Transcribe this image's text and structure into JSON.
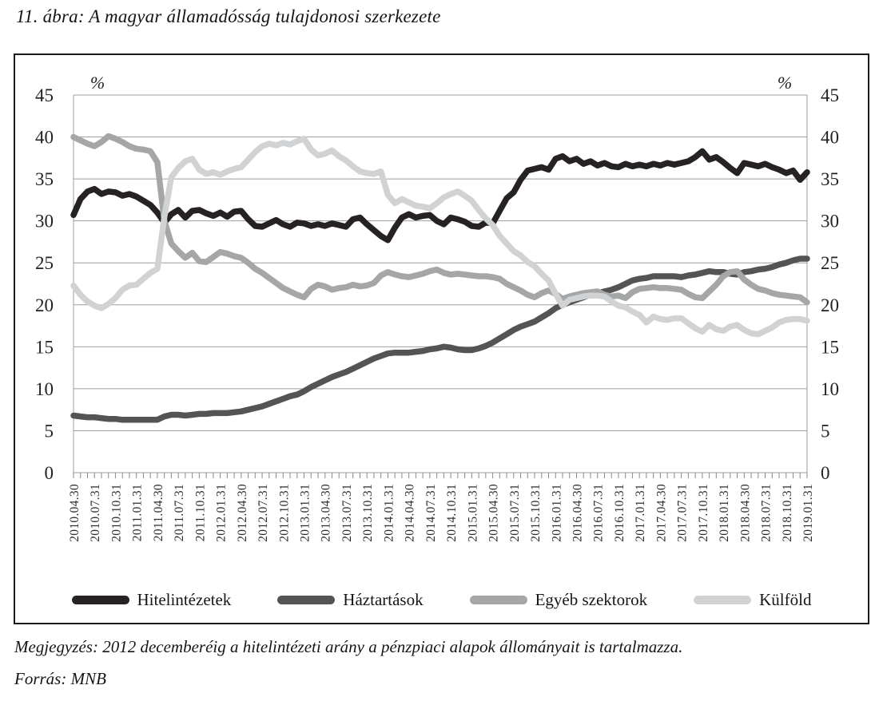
{
  "title": "11. ábra: A magyar államadósság tulajdonosi szerkezete",
  "note": "Megjegyzés: 2012 decemberéig a hitelintézeti arány a pénzpiaci alapok állományait is tartalmazza.",
  "source": "Forrás: MNB",
  "chart_data": {
    "type": "line",
    "unit_label": "%",
    "ylim": [
      0,
      45
    ],
    "y_ticks": [
      0,
      5,
      10,
      15,
      20,
      25,
      30,
      35,
      40,
      45
    ],
    "grid": "horizontal",
    "legend_position": "bottom",
    "x_frequency": "monthly",
    "x_tick_labels": [
      "2010.04.30",
      "2010.07.31",
      "2010.10.31",
      "2011.01.31",
      "2011.04.30",
      "2011.07.31",
      "2011.10.31",
      "2012.01.31",
      "2012.04.30",
      "2012.07.31",
      "2012.10.31",
      "2013.01.31",
      "2013.04.30",
      "2013.07.31",
      "2013.10.31",
      "2014.01.31",
      "2014.04.30",
      "2014.07.31",
      "2014.10.31",
      "2015.01.31",
      "2015.04.30",
      "2015.07.31",
      "2015.10.31",
      "2016.01.31",
      "2016.04.30",
      "2016.07.31",
      "2016.10.31",
      "2017.01.31",
      "2017.04.30",
      "2017.07.31",
      "2017.10.31",
      "2018.01.31",
      "2018.04.30",
      "2018.07.31",
      "2018.10.31",
      "2019.01.31"
    ],
    "months_per_label": 3,
    "colors": {
      "frame": "#1a1a1a",
      "gridline": "#9e9e9e",
      "axis_text": "#222222"
    },
    "series": [
      {
        "name": "Hitelintézetek",
        "color": "#262223",
        "values": [
          30.7,
          32.6,
          33.5,
          33.8,
          33.2,
          33.5,
          33.4,
          33.0,
          33.2,
          32.9,
          32.4,
          31.9,
          31.0,
          29.8,
          30.8,
          31.3,
          30.4,
          31.2,
          31.3,
          30.9,
          30.6,
          31.0,
          30.5,
          31.1,
          31.2,
          30.2,
          29.4,
          29.3,
          29.7,
          30.1,
          29.6,
          29.3,
          29.8,
          29.7,
          29.4,
          29.6,
          29.4,
          29.7,
          29.5,
          29.3,
          30.2,
          30.4,
          29.6,
          28.9,
          28.2,
          27.7,
          29.2,
          30.4,
          30.8,
          30.4,
          30.6,
          30.7,
          30.0,
          29.6,
          30.4,
          30.2,
          29.9,
          29.4,
          29.3,
          29.8,
          29.7,
          31.2,
          32.7,
          33.4,
          34.9,
          36.0,
          36.2,
          36.4,
          36.1,
          37.4,
          37.7,
          37.1,
          37.4,
          36.8,
          37.1,
          36.6,
          36.9,
          36.5,
          36.4,
          36.8,
          36.5,
          36.7,
          36.5,
          36.8,
          36.6,
          36.9,
          36.7,
          36.9,
          37.1,
          37.6,
          38.3,
          37.3,
          37.6,
          37.0,
          36.3,
          35.7,
          36.9,
          36.7,
          36.5,
          36.8,
          36.4,
          36.1,
          35.7,
          36.0,
          34.9,
          35.8
        ]
      },
      {
        "name": "Háztartások",
        "color": "#545456",
        "values": [
          6.8,
          6.7,
          6.6,
          6.6,
          6.5,
          6.4,
          6.4,
          6.3,
          6.3,
          6.3,
          6.3,
          6.3,
          6.3,
          6.7,
          6.9,
          6.9,
          6.8,
          6.9,
          7.0,
          7.0,
          7.1,
          7.1,
          7.1,
          7.2,
          7.3,
          7.5,
          7.7,
          7.9,
          8.2,
          8.5,
          8.8,
          9.1,
          9.3,
          9.7,
          10.2,
          10.6,
          11.0,
          11.4,
          11.7,
          12.0,
          12.4,
          12.8,
          13.2,
          13.6,
          13.9,
          14.2,
          14.3,
          14.3,
          14.3,
          14.4,
          14.5,
          14.7,
          14.8,
          15.0,
          14.9,
          14.7,
          14.6,
          14.6,
          14.8,
          15.1,
          15.5,
          16.0,
          16.5,
          17.0,
          17.4,
          17.7,
          18.0,
          18.5,
          19.0,
          19.6,
          20.0,
          20.3,
          20.6,
          20.9,
          21.2,
          21.4,
          21.6,
          21.8,
          22.1,
          22.5,
          22.9,
          23.1,
          23.2,
          23.4,
          23.4,
          23.4,
          23.4,
          23.3,
          23.5,
          23.6,
          23.8,
          24.0,
          23.9,
          23.9,
          23.7,
          23.6,
          23.9,
          24.0,
          24.2,
          24.3,
          24.5,
          24.8,
          25.0,
          25.3,
          25.5,
          25.5
        ]
      },
      {
        "name": "Egyéb szektorok",
        "color": "#a4a6a8",
        "values": [
          40.0,
          39.6,
          39.2,
          38.9,
          39.4,
          40.1,
          39.8,
          39.4,
          38.9,
          38.6,
          38.5,
          38.3,
          37.0,
          30.0,
          27.3,
          26.4,
          25.6,
          26.2,
          25.2,
          25.1,
          25.7,
          26.3,
          26.1,
          25.8,
          25.6,
          25.0,
          24.3,
          23.8,
          23.2,
          22.6,
          22.0,
          21.6,
          21.2,
          20.9,
          21.9,
          22.4,
          22.2,
          21.8,
          22.0,
          22.1,
          22.4,
          22.2,
          22.3,
          22.6,
          23.5,
          23.9,
          23.6,
          23.4,
          23.3,
          23.5,
          23.7,
          24.0,
          24.2,
          23.8,
          23.6,
          23.7,
          23.6,
          23.5,
          23.4,
          23.4,
          23.3,
          23.1,
          22.5,
          22.1,
          21.7,
          21.2,
          20.9,
          21.4,
          21.7,
          21.3,
          20.7,
          21.0,
          21.2,
          21.4,
          21.5,
          21.6,
          21.2,
          21.0,
          21.1,
          20.8,
          21.5,
          21.9,
          22.0,
          22.1,
          22.0,
          22.0,
          21.9,
          21.8,
          21.3,
          20.9,
          20.8,
          21.6,
          22.4,
          23.4,
          23.9,
          24.0,
          23.0,
          22.4,
          21.9,
          21.7,
          21.4,
          21.2,
          21.1,
          21.0,
          20.9,
          20.3
        ]
      },
      {
        "name": "Külföld",
        "color": "#d0d2d3",
        "values": [
          22.3,
          21.2,
          20.4,
          19.9,
          19.6,
          20.1,
          20.8,
          21.8,
          22.3,
          22.4,
          23.1,
          23.8,
          24.3,
          30.5,
          35.2,
          36.3,
          37.1,
          37.4,
          36.1,
          35.6,
          35.8,
          35.5,
          35.9,
          36.2,
          36.4,
          37.3,
          38.2,
          38.9,
          39.2,
          39.0,
          39.3,
          39.1,
          39.5,
          39.8,
          38.5,
          37.8,
          38.0,
          38.4,
          37.7,
          37.2,
          36.5,
          35.9,
          35.7,
          35.6,
          35.9,
          33.1,
          32.1,
          32.6,
          32.2,
          31.8,
          31.7,
          31.5,
          32.1,
          32.8,
          33.2,
          33.5,
          33.0,
          32.4,
          31.3,
          30.3,
          29.5,
          28.2,
          27.3,
          26.4,
          25.9,
          25.1,
          24.6,
          23.7,
          22.9,
          21.3,
          19.9,
          20.6,
          20.8,
          21.0,
          21.1,
          21.1,
          21.0,
          20.4,
          19.9,
          19.7,
          19.2,
          18.8,
          17.9,
          18.6,
          18.3,
          18.2,
          18.4,
          18.4,
          17.8,
          17.2,
          16.8,
          17.6,
          17.1,
          16.9,
          17.4,
          17.6,
          17.0,
          16.6,
          16.5,
          16.9,
          17.3,
          17.9,
          18.2,
          18.3,
          18.3,
          18.1
        ]
      }
    ]
  }
}
